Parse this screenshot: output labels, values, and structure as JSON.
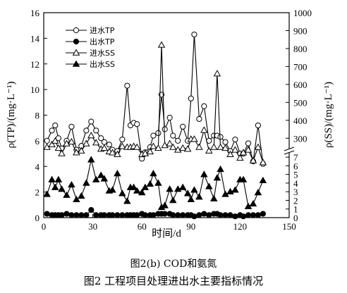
{
  "caption_sub": "图2(b)  COD和氨氮",
  "caption_main": "图2  工程项目处理进出水主要指标情况",
  "chart_data": {
    "type": "line",
    "xlabel": "时间/d",
    "ylabel_left": "ρ(TP)/(mg·L⁻¹)",
    "ylabel_right": "ρ(SS)/(mg·L⁻¹)",
    "xlim": [
      0,
      150
    ],
    "xticks": [
      0,
      30,
      60,
      90,
      120,
      150
    ],
    "ylim_left": [
      0,
      16
    ],
    "yticks_left": [
      0,
      2,
      4,
      6,
      8,
      10,
      12,
      14,
      16
    ],
    "right_axis": {
      "lower_ticks": [
        0,
        1,
        2,
        3,
        4,
        5,
        6,
        7
      ],
      "upper_ticks": [
        300,
        400,
        500,
        600,
        700,
        800,
        900,
        1000
      ],
      "break": true
    },
    "legend_position": "top-left",
    "series": [
      {
        "name": "进水TP",
        "axis": "left",
        "marker": "circle",
        "filled": false,
        "x": [
          2,
          5,
          7,
          9,
          11,
          14,
          17,
          20,
          23,
          26,
          29,
          32,
          35,
          37,
          40,
          42,
          45,
          48,
          51,
          53,
          55,
          57,
          60,
          62,
          65,
          67,
          70,
          72,
          74,
          77,
          79,
          82,
          85,
          88,
          90,
          92,
          95,
          98,
          101,
          104,
          106,
          108,
          111,
          114,
          117,
          120,
          122,
          125,
          128,
          131,
          134
        ],
        "values": [
          6.0,
          6.8,
          7.2,
          6.2,
          5.4,
          6.0,
          7.1,
          5.3,
          5.6,
          6.8,
          7.5,
          6.8,
          6.2,
          5.9,
          5.7,
          5.3,
          5.2,
          6.1,
          10.3,
          7.2,
          7.4,
          7.3,
          4.6,
          5.1,
          5.5,
          6.4,
          6.6,
          9.6,
          6.9,
          7.8,
          6.4,
          6.0,
          7.1,
          6.0,
          9.3,
          14.3,
          7.7,
          8.7,
          6.0,
          6.4,
          6.4,
          6.3,
          5.9,
          5.2,
          6.1,
          5.0,
          5.0,
          5.8,
          4.4,
          7.2,
          4.2
        ]
      },
      {
        "name": "出水TP",
        "axis": "left",
        "marker": "circle",
        "filled": true,
        "x": [
          2,
          5,
          7,
          9,
          11,
          14,
          17,
          20,
          23,
          26,
          29,
          32,
          35,
          37,
          40,
          42,
          45,
          48,
          51,
          53,
          55,
          57,
          60,
          62,
          65,
          67,
          70,
          72,
          74,
          77,
          79,
          82,
          85,
          88,
          90,
          92,
          95,
          98,
          101,
          104,
          106,
          108,
          111,
          114,
          117,
          120,
          122,
          125,
          128,
          131,
          134
        ],
        "values": [
          0.3,
          0.2,
          0.2,
          0.2,
          0.2,
          0.3,
          0.2,
          0.2,
          0.2,
          0.2,
          0.6,
          0.2,
          0.2,
          0.2,
          0.2,
          0.2,
          0.2,
          0.2,
          0.2,
          0.2,
          0.2,
          0.2,
          0.3,
          0.2,
          0.2,
          0.2,
          0.3,
          0.3,
          0.3,
          0.3,
          0.2,
          0.2,
          0.2,
          0.2,
          0.2,
          0.1,
          0.2,
          0.3,
          0.2,
          0.3,
          0.3,
          0.2,
          0.2,
          0.2,
          0.1,
          0.2,
          0.1,
          0.2,
          0.2,
          0.2,
          0.3
        ]
      },
      {
        "name": "进水SS",
        "axis": "right",
        "marker": "triangle",
        "filled": false,
        "x": [
          2,
          5,
          7,
          9,
          11,
          14,
          17,
          20,
          23,
          26,
          29,
          32,
          35,
          37,
          40,
          42,
          45,
          48,
          51,
          53,
          55,
          57,
          60,
          62,
          65,
          67,
          70,
          72,
          74,
          77,
          79,
          82,
          85,
          88,
          90,
          92,
          95,
          98,
          101,
          104,
          106,
          108,
          111,
          114,
          117,
          120,
          122,
          125,
          128,
          131,
          134
        ],
        "values": [
          250,
          265,
          285,
          245,
          215,
          270,
          280,
          220,
          230,
          270,
          315,
          275,
          240,
          245,
          225,
          220,
          210,
          255,
          250,
          250,
          255,
          250,
          210,
          215,
          225,
          255,
          245,
          820,
          260,
          270,
          250,
          235,
          245,
          240,
          295,
          295,
          250,
          345,
          230,
          250,
          660,
          250,
          245,
          210,
          235,
          190,
          220,
          235,
          175,
          250,
          165
        ]
      },
      {
        "name": "出水SS",
        "axis": "right",
        "marker": "triangle",
        "filled": true,
        "x": [
          2,
          5,
          7,
          9,
          11,
          14,
          17,
          20,
          23,
          26,
          29,
          32,
          35,
          37,
          40,
          42,
          45,
          48,
          51,
          53,
          55,
          57,
          60,
          62,
          65,
          67,
          70,
          72,
          74,
          77,
          79,
          82,
          85,
          88,
          90,
          92,
          95,
          98,
          101,
          104,
          106,
          108,
          111,
          114,
          117,
          120,
          122,
          125,
          128,
          131,
          134
        ],
        "values": [
          2.7,
          4.4,
          3.5,
          4.4,
          3.3,
          2.6,
          3.8,
          2.1,
          2.5,
          4.0,
          6.7,
          4.4,
          4.9,
          4.5,
          3.1,
          3.2,
          5.1,
          2.8,
          1.9,
          3.5,
          3.5,
          3.1,
          2.9,
          3.5,
          3.9,
          5.1,
          4.0,
          1.2,
          1.4,
          3.3,
          2.0,
          3.3,
          3.5,
          2.8,
          2.1,
          3.2,
          2.4,
          5.0,
          3.6,
          2.2,
          4.6,
          5.6,
          2.7,
          3.0,
          3.2,
          4.4,
          4.4,
          1.3,
          1.6,
          2.9,
          4.3
        ]
      }
    ]
  }
}
